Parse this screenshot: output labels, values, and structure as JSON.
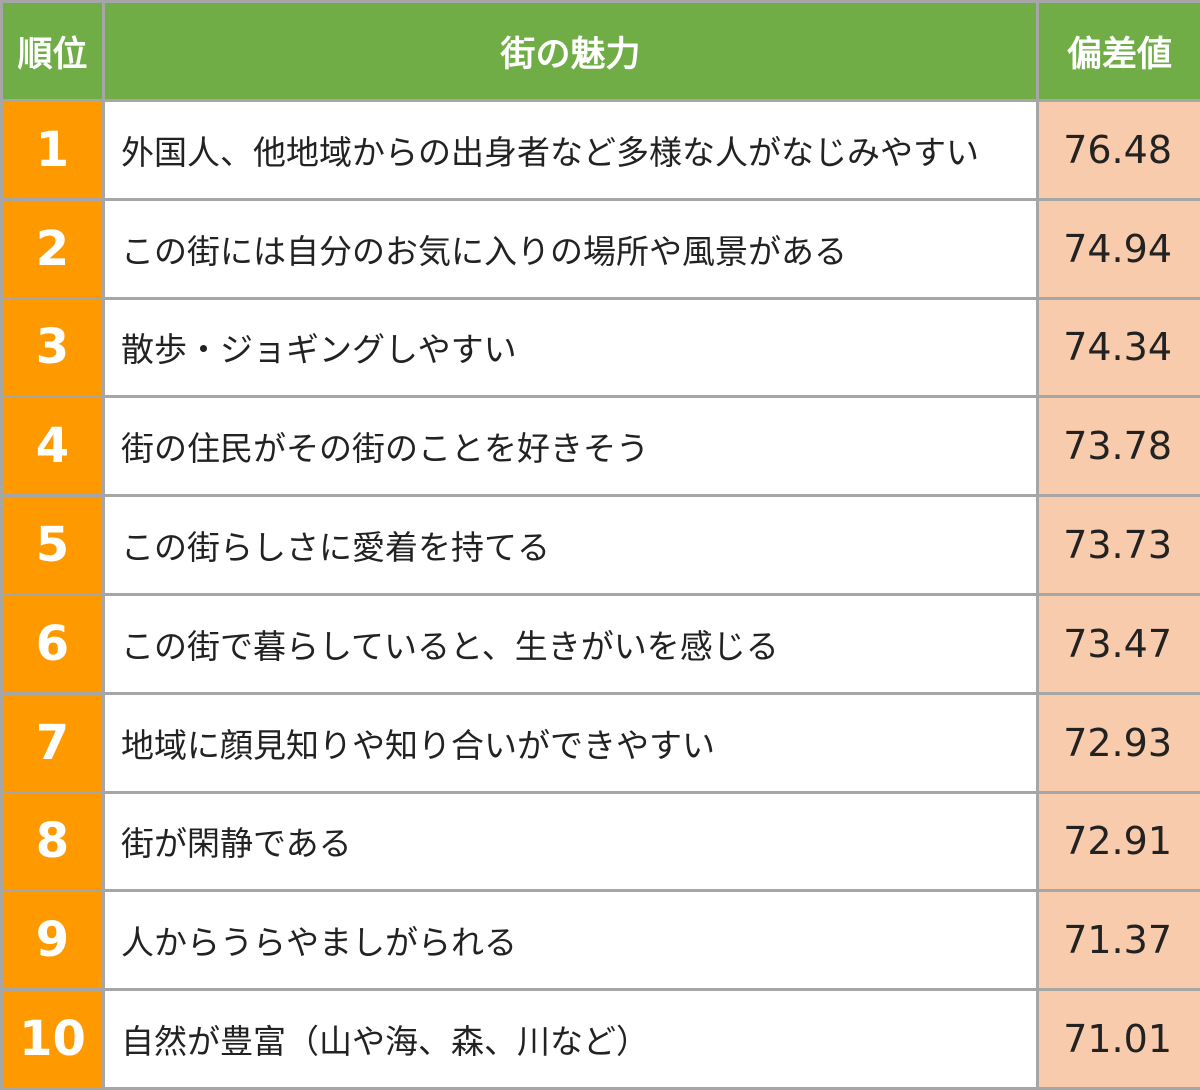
{
  "header": {
    "rank": "順位",
    "attraction": "街の魅力",
    "score": "偏差値"
  },
  "rows": [
    {
      "rank": "1",
      "text": "外国人、他地域からの出身者など多様な人がなじみやすい",
      "score": "76.48"
    },
    {
      "rank": "2",
      "text": "この街には自分のお気に入りの場所や風景がある",
      "score": "74.94"
    },
    {
      "rank": "3",
      "text": "散歩・ジョギングしやすい",
      "score": "74.34"
    },
    {
      "rank": "4",
      "text": "街の住民がその街のことを好きそう",
      "score": "73.78"
    },
    {
      "rank": "5",
      "text": "この街らしさに愛着を持てる",
      "score": "73.73"
    },
    {
      "rank": "6",
      "text": "この街で暮らしていると、生きがいを感じる",
      "score": "73.47"
    },
    {
      "rank": "7",
      "text": "地域に顔見知りや知り合いができやすい",
      "score": "72.93"
    },
    {
      "rank": "8",
      "text": "街が閑静である",
      "score": "72.91"
    },
    {
      "rank": "9",
      "text": "人からうらやましがられる",
      "score": "71.37"
    },
    {
      "rank": "10",
      "text": "自然が豊富（山や海、森、川など）",
      "score": "71.01"
    }
  ],
  "colors": {
    "header_bg": "#70ad47",
    "rank_bg": "#ff9900",
    "score_bg": "#f8cbad",
    "border": "#a6a6a6"
  }
}
